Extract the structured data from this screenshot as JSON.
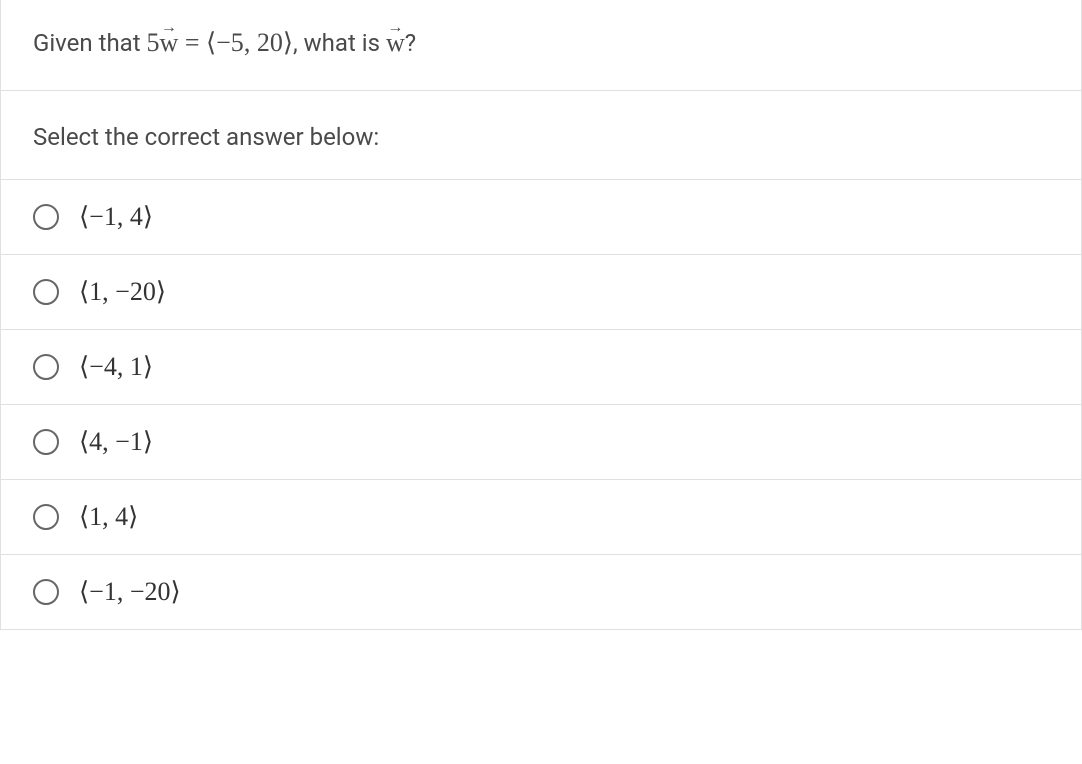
{
  "question": {
    "prefix": "Given that ",
    "coefficient": "5",
    "vector_symbol": "w",
    "equals": " = ",
    "vector_open": "⟨",
    "vector_value1": "−5",
    "vector_sep": ", ",
    "vector_value2": "20",
    "vector_close": "⟩",
    "middle": ", what is ",
    "vector_symbol2": "w",
    "suffix": "?"
  },
  "prompt": "Select the correct answer below:",
  "options": [
    {
      "open": "⟨",
      "val1": "−1",
      "sep": ", ",
      "val2": "4",
      "close": "⟩"
    },
    {
      "open": "⟨",
      "val1": "1",
      "sep": ", ",
      "val2": "−20",
      "close": "⟩"
    },
    {
      "open": "⟨",
      "val1": "−4",
      "sep": ", ",
      "val2": "1",
      "close": "⟩"
    },
    {
      "open": "⟨",
      "val1": "4",
      "sep": ", ",
      "val2": "−1",
      "close": "⟩"
    },
    {
      "open": "⟨",
      "val1": "1",
      "sep": ", ",
      "val2": "4",
      "close": "⟩"
    },
    {
      "open": "⟨",
      "val1": "−1",
      "sep": ", ",
      "val2": "−20",
      "close": "⟩"
    }
  ],
  "colors": {
    "text": "#4a4a4a",
    "border": "#e0e0e0",
    "radio_border": "#666666",
    "background": "#ffffff"
  }
}
